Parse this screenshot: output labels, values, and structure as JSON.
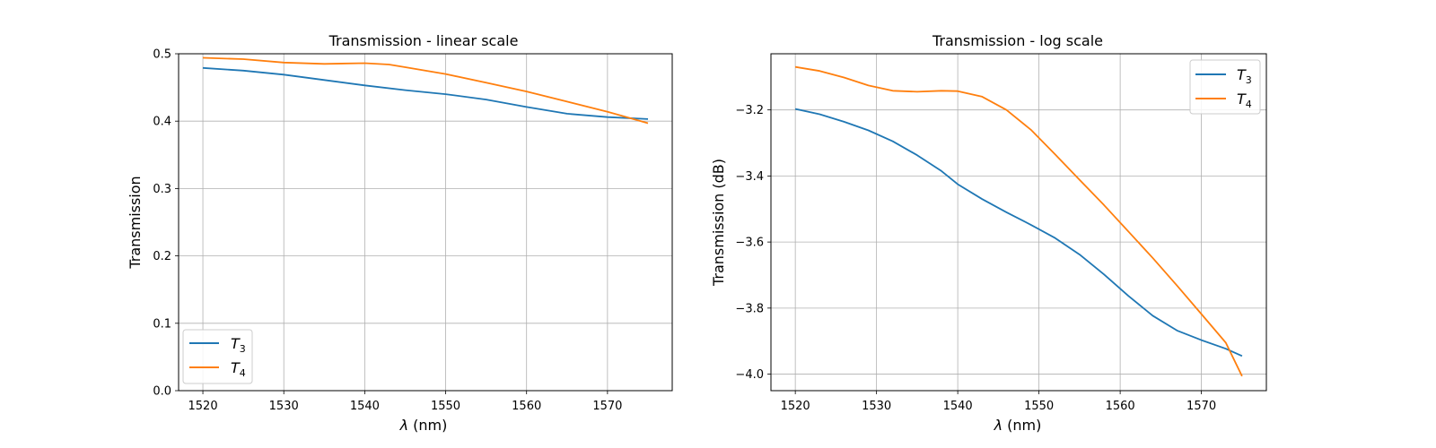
{
  "chart_data": [
    {
      "type": "line",
      "title": "Transmission - linear scale",
      "xlabel_symbol": "λ",
      "xlabel_unit": " (nm)",
      "ylabel": "Transmission",
      "xlim": [
        1517,
        1578
      ],
      "ylim": [
        0,
        0.5
      ],
      "xticks": [
        1520,
        1530,
        1540,
        1550,
        1560,
        1570
      ],
      "yticks": [
        0.0,
        0.1,
        0.2,
        0.3,
        0.4,
        0.5
      ],
      "ytick_labels": [
        "0.0",
        "0.1",
        "0.2",
        "0.3",
        "0.4",
        "0.5"
      ],
      "grid": true,
      "legend_position": "lower left",
      "series": [
        {
          "name_base": "T",
          "name_sub": "3",
          "color": "#1f77b4",
          "x": [
            1520,
            1525,
            1530,
            1535,
            1540,
            1545,
            1550,
            1555,
            1560,
            1563,
            1565,
            1570,
            1575
          ],
          "y": [
            0.479,
            0.475,
            0.469,
            0.461,
            0.453,
            0.446,
            0.44,
            0.432,
            0.421,
            0.415,
            0.411,
            0.406,
            0.403
          ]
        },
        {
          "name_base": "T",
          "name_sub": "4",
          "color": "#ff7f0e",
          "x": [
            1520,
            1525,
            1530,
            1535,
            1540,
            1543,
            1545,
            1550,
            1555,
            1560,
            1565,
            1570,
            1575
          ],
          "y": [
            0.494,
            0.492,
            0.487,
            0.485,
            0.486,
            0.484,
            0.48,
            0.47,
            0.457,
            0.444,
            0.429,
            0.414,
            0.397
          ]
        }
      ]
    },
    {
      "type": "line",
      "title": "Transmission - log scale",
      "xlabel_symbol": "λ",
      "xlabel_unit": " (nm)",
      "ylabel": "Transmission (dB)",
      "xlim": [
        1517,
        1578
      ],
      "ylim": [
        -4.05,
        -3.03
      ],
      "xticks": [
        1520,
        1530,
        1540,
        1550,
        1560,
        1570
      ],
      "yticks": [
        -4.0,
        -3.8,
        -3.6,
        -3.4,
        -3.2
      ],
      "ytick_labels": [
        "−4.0",
        "−3.8",
        "−3.6",
        "−3.4",
        "−3.2"
      ],
      "grid": true,
      "legend_position": "upper right",
      "series": [
        {
          "name_base": "T",
          "name_sub": "3",
          "color": "#1f77b4",
          "x": [
            1520,
            1523,
            1526,
            1529,
            1532,
            1535,
            1538,
            1540,
            1543,
            1546,
            1549,
            1552,
            1555,
            1558,
            1561,
            1564,
            1567,
            1570,
            1573,
            1575
          ],
          "y": [
            -3.197,
            -3.213,
            -3.236,
            -3.262,
            -3.295,
            -3.337,
            -3.385,
            -3.425,
            -3.47,
            -3.51,
            -3.548,
            -3.588,
            -3.638,
            -3.698,
            -3.763,
            -3.823,
            -3.868,
            -3.897,
            -3.923,
            -3.945
          ]
        },
        {
          "name_base": "T",
          "name_sub": "4",
          "color": "#ff7f0e",
          "x": [
            1520,
            1523,
            1526,
            1529,
            1532,
            1535,
            1538,
            1540,
            1543,
            1546,
            1549,
            1552,
            1555,
            1558,
            1561,
            1564,
            1567,
            1570,
            1573,
            1575
          ],
          "y": [
            -3.07,
            -3.082,
            -3.102,
            -3.126,
            -3.142,
            -3.145,
            -3.142,
            -3.143,
            -3.16,
            -3.2,
            -3.26,
            -3.335,
            -3.412,
            -3.488,
            -3.568,
            -3.648,
            -3.732,
            -3.818,
            -3.905,
            -4.006
          ]
        }
      ]
    }
  ]
}
